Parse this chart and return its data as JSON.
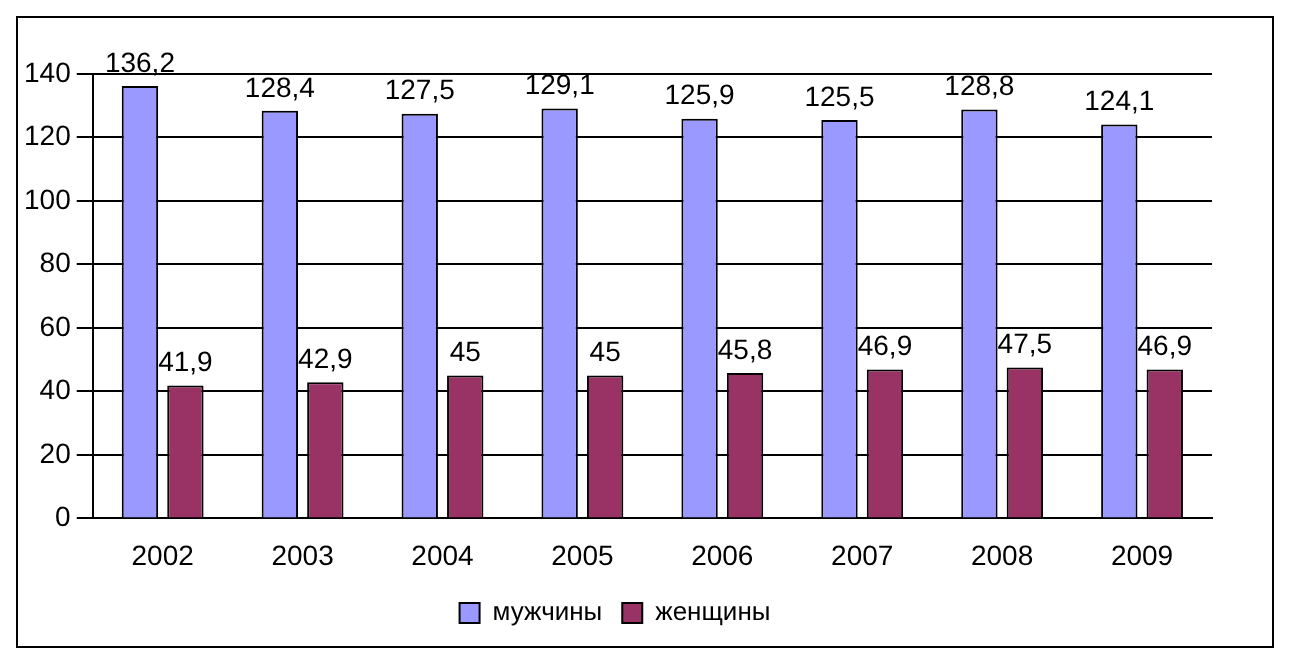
{
  "chart_data": {
    "type": "bar",
    "categories": [
      "2002",
      "2003",
      "2004",
      "2005",
      "2006",
      "2007",
      "2008",
      "2009"
    ],
    "series": [
      {
        "name": "мужчины",
        "color": "#9999ff",
        "values": [
          136.2,
          128.4,
          127.5,
          129.1,
          125.9,
          125.5,
          128.8,
          124.1
        ],
        "value_labels": [
          "136,2",
          "128,4",
          "127,5",
          "129,1",
          "125,9",
          "125,5",
          "128,8",
          "124,1"
        ]
      },
      {
        "name": "женщины",
        "color": "#993366",
        "values": [
          41.9,
          42.9,
          45,
          45,
          45.8,
          46.9,
          47.5,
          46.9
        ],
        "value_labels": [
          "41,9",
          "42,9",
          "45",
          "45",
          "45,8",
          "46,9",
          "47,5",
          "46,9"
        ]
      }
    ],
    "ylim": [
      0,
      140
    ],
    "yticks": [
      0,
      20,
      40,
      60,
      80,
      100,
      120,
      140
    ],
    "grid": "y",
    "legend": "bottom"
  }
}
